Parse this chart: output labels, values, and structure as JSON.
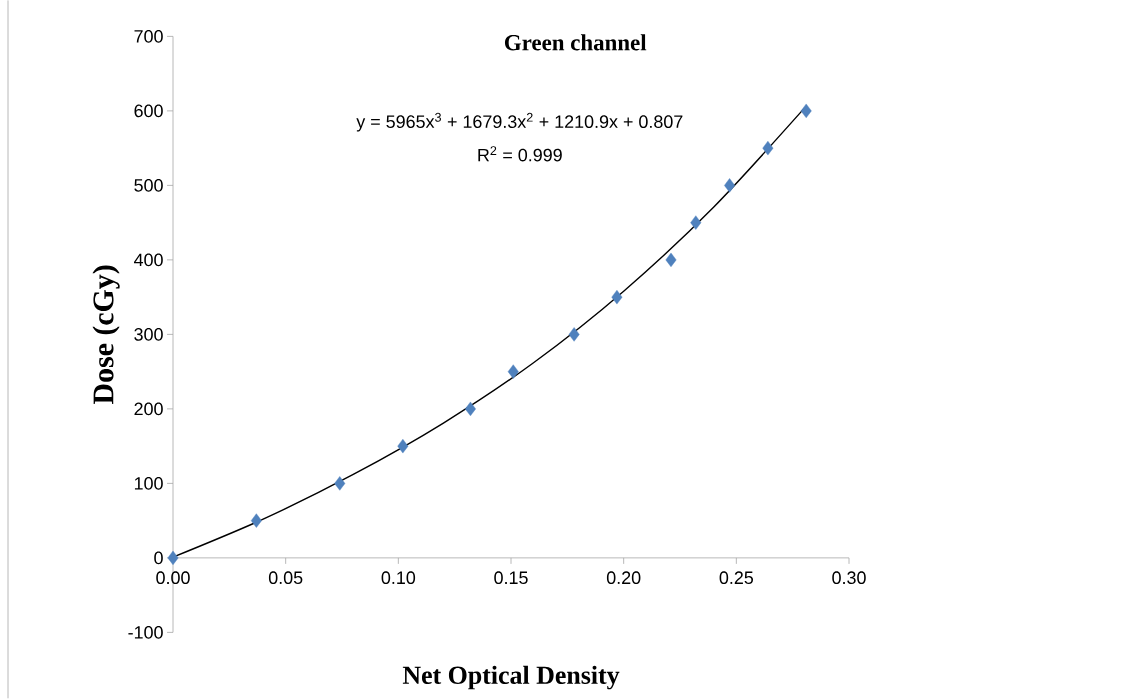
{
  "chart_data": {
    "type": "scatter",
    "title": "Green channel",
    "xlabel": "Net Optical Density",
    "ylabel": "Dose (cGy)",
    "annotations": [
      "y = 5965x$^{3}$ + 1679.3x$^{2}$ + 1210.9x + 0.807",
      "R$^{2}$ = 0.999"
    ],
    "xlim": [
      0,
      0.3
    ],
    "xticks": [
      {
        "value": 0,
        "label": "0.00"
      },
      0.05,
      {
        "value": 0.1,
        "label": "0.10"
      },
      0.15,
      {
        "value": 0.2,
        "label": "0.20"
      },
      0.25,
      {
        "value": 0.3,
        "label": "0.30"
      }
    ],
    "ylim": [
      -100,
      700
    ],
    "yticks": [
      -100,
      0,
      100,
      200,
      300,
      400,
      500,
      600,
      700
    ],
    "grid": false,
    "series": [
      {
        "color": "#4f81bd",
        "marker": "diamond",
        "x": [
          0,
          0.037,
          0.074,
          0.102,
          0.132,
          0.151,
          0.178,
          0.197,
          0.221,
          0.232,
          0.247,
          0.264,
          0.281
        ],
        "values": [
          0,
          50,
          100,
          150,
          200,
          250,
          300,
          350,
          400,
          450,
          500,
          550,
          600
        ]
      },
      {
        "type": "line",
        "color": "#000000",
        "marker": "none",
        "line_style": "solid",
        "x": [
          0,
          0.04,
          0.08,
          0.12,
          0.16,
          0.2,
          0.24,
          0.28
        ],
        "values": [
          1,
          52,
          112,
          181,
          262,
          358,
          471,
          603
        ]
      }
    ]
  }
}
